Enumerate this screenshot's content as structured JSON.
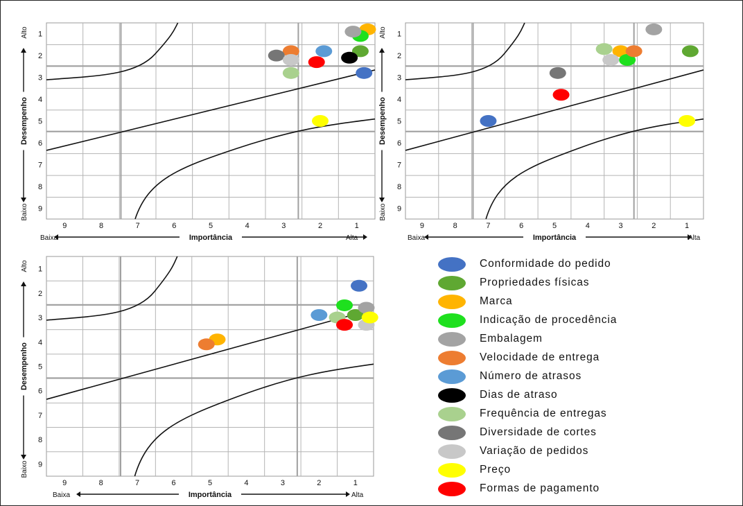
{
  "series": [
    {
      "name": "Conformidade do pedido",
      "color": "#4472C4"
    },
    {
      "name": "Propriedades físicas",
      "color": "#5FA832"
    },
    {
      "name": "Marca",
      "color": "#FFB400"
    },
    {
      "name": "Indicação de procedência",
      "color": "#1EE01E"
    },
    {
      "name": "Embalagem",
      "color": "#A3A3A3"
    },
    {
      "name": "Velocidade de entrega",
      "color": "#ED7D31"
    },
    {
      "name": "Número de atrasos",
      "color": "#5B9BD5"
    },
    {
      "name": "Dias de atraso",
      "color": "#000000"
    },
    {
      "name": "Frequência de entregas",
      "color": "#A9D18E"
    },
    {
      "name": "Diversidade de cortes",
      "color": "#767676"
    },
    {
      "name": "Variação de pedidos",
      "color": "#C8C8C8"
    },
    {
      "name": "Preço",
      "color": "#FFFF00"
    },
    {
      "name": "Formas de pagamento",
      "color": "#FF0000"
    }
  ],
  "chart_data": [
    {
      "type": "scatter",
      "xlabel": "Importância",
      "ylabel": "Desempenho",
      "x_low_label": "Baixa",
      "x_high_label": "Alta",
      "y_high_label": "Alto",
      "y_low_label": "Baixo",
      "x_ticks": [
        "9",
        "8",
        "7",
        "6",
        "5",
        "4",
        "3",
        "2",
        "1"
      ],
      "y_ticks": [
        "1",
        "2",
        "3",
        "4",
        "5",
        "6",
        "7",
        "8",
        "9"
      ],
      "xlim": [
        9.5,
        0.5
      ],
      "ylim": [
        0.5,
        9.5
      ],
      "grid": true,
      "points": [
        {
          "series": "Conformidade do pedido",
          "x": 0.8,
          "y": 2.8
        },
        {
          "series": "Propriedades físicas",
          "x": 0.9,
          "y": 1.8
        },
        {
          "series": "Marca",
          "x": 0.7,
          "y": 0.8
        },
        {
          "series": "Indicação de procedência",
          "x": 0.9,
          "y": 1.1
        },
        {
          "series": "Embalagem",
          "x": 1.1,
          "y": 0.9
        },
        {
          "series": "Velocidade de entrega",
          "x": 2.8,
          "y": 1.8
        },
        {
          "series": "Número de atrasos",
          "x": 1.9,
          "y": 1.8
        },
        {
          "series": "Dias de atraso",
          "x": 1.2,
          "y": 2.1
        },
        {
          "series": "Frequência de entregas",
          "x": 2.8,
          "y": 2.8
        },
        {
          "series": "Diversidade de cortes",
          "x": 3.2,
          "y": 2.0
        },
        {
          "series": "Variação de pedidos",
          "x": 2.8,
          "y": 2.2
        },
        {
          "series": "Preço",
          "x": 2.0,
          "y": 5.0
        },
        {
          "series": "Formas de pagamento",
          "x": 2.1,
          "y": 2.3
        }
      ]
    },
    {
      "type": "scatter",
      "xlabel": "Importância",
      "ylabel": "Desempenho",
      "x_low_label": "Baixa",
      "x_high_label": "Alta",
      "y_high_label": "Alto",
      "y_low_label": "Baixo",
      "x_ticks": [
        "9",
        "8",
        "7",
        "6",
        "5",
        "4",
        "3",
        "2",
        "1"
      ],
      "y_ticks": [
        "1",
        "2",
        "3",
        "4",
        "5",
        "6",
        "7",
        "8",
        "9"
      ],
      "xlim": [
        9.5,
        0.5
      ],
      "ylim": [
        0.5,
        9.5
      ],
      "grid": true,
      "points": [
        {
          "series": "Conformidade do pedido",
          "x": 7.0,
          "y": 5.0
        },
        {
          "series": "Propriedades físicas",
          "x": 0.9,
          "y": 1.8
        },
        {
          "series": "Marca",
          "x": 3.0,
          "y": 1.8
        },
        {
          "series": "Indicação de procedência",
          "x": 2.8,
          "y": 2.2
        },
        {
          "series": "Embalagem",
          "x": 2.0,
          "y": 0.8
        },
        {
          "series": "Velocidade de entrega",
          "x": 2.6,
          "y": 1.8
        },
        {
          "series": "Frequência de entregas",
          "x": 3.5,
          "y": 1.7
        },
        {
          "series": "Diversidade de cortes",
          "x": 4.9,
          "y": 2.8
        },
        {
          "series": "Variação de pedidos",
          "x": 3.3,
          "y": 2.2
        },
        {
          "series": "Preço",
          "x": 1.0,
          "y": 5.0
        },
        {
          "series": "Formas de pagamento",
          "x": 4.8,
          "y": 3.8
        }
      ]
    },
    {
      "type": "scatter",
      "xlabel": "Importância",
      "ylabel": "Desempenho",
      "x_low_label": "Baixa",
      "x_high_label": "Alta",
      "y_high_label": "Alto",
      "y_low_label": "Baixo",
      "x_ticks": [
        "9",
        "8",
        "7",
        "6",
        "5",
        "4",
        "3",
        "2",
        "1"
      ],
      "y_ticks": [
        "1",
        "2",
        "3",
        "4",
        "5",
        "6",
        "7",
        "8",
        "9"
      ],
      "xlim": [
        9.5,
        0.5
      ],
      "ylim": [
        0.5,
        9.5
      ],
      "grid": true,
      "points": [
        {
          "series": "Conformidade do pedido",
          "x": 0.9,
          "y": 1.7
        },
        {
          "series": "Propriedades físicas",
          "x": 1.0,
          "y": 2.9
        },
        {
          "series": "Marca",
          "x": 4.8,
          "y": 3.9
        },
        {
          "series": "Indicação de procedência",
          "x": 1.3,
          "y": 2.5
        },
        {
          "series": "Embalagem",
          "x": 0.7,
          "y": 2.6
        },
        {
          "series": "Velocidade de entrega",
          "x": 5.1,
          "y": 4.1
        },
        {
          "series": "Número de atrasos",
          "x": 2.0,
          "y": 2.9
        },
        {
          "series": "Frequência de entregas",
          "x": 1.5,
          "y": 3.0
        },
        {
          "series": "Variação de pedidos",
          "x": 0.7,
          "y": 3.3
        },
        {
          "series": "Preço",
          "x": 0.6,
          "y": 3.0
        },
        {
          "series": "Formas de pagamento",
          "x": 1.3,
          "y": 3.3
        }
      ]
    }
  ]
}
